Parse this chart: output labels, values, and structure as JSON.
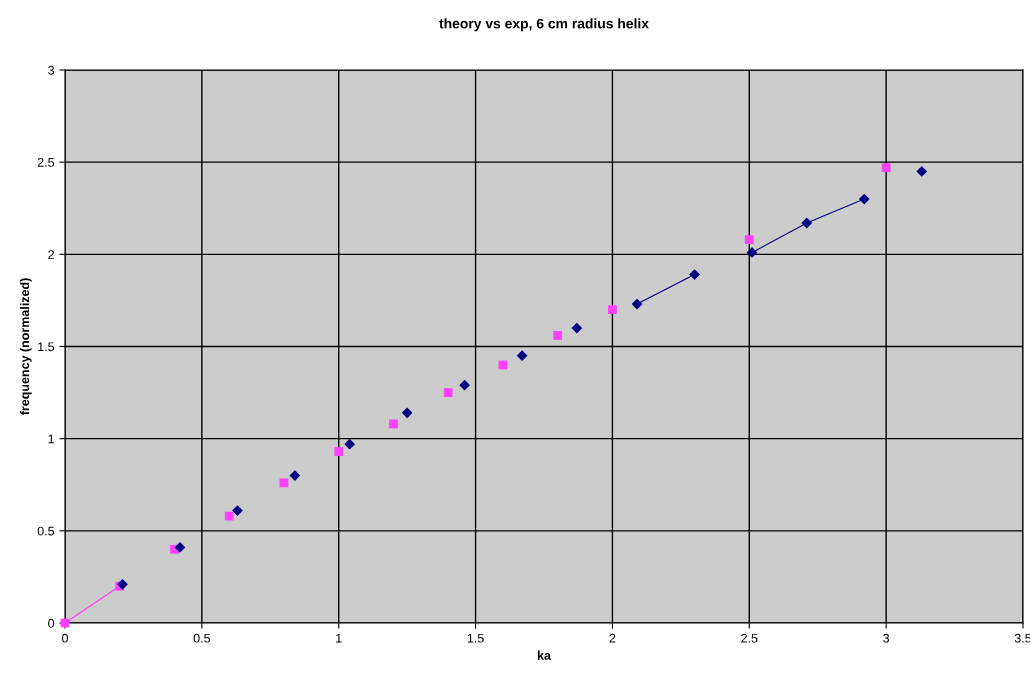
{
  "chart_data": {
    "type": "scatter",
    "title": "theory vs exp, 6 cm radius helix",
    "xlabel": "ka",
    "ylabel": "frequency (normalized)",
    "xlim": [
      0,
      3.5
    ],
    "xticks": [
      0,
      0.5,
      1,
      1.5,
      2,
      2.5,
      3,
      3.5
    ],
    "ylim": [
      0,
      3
    ],
    "yticks": [
      0,
      0.5,
      1,
      1.5,
      2,
      2.5,
      3
    ],
    "grid": true,
    "series": [
      {
        "marker": "diamond",
        "color": "#000080",
        "x": [
          0.21,
          0.42,
          0.63,
          0.84,
          1.04,
          1.25,
          1.46,
          1.67,
          1.87,
          2.09,
          2.3,
          2.51,
          2.71,
          2.92,
          3.13
        ],
        "values": [
          0.21,
          0.41,
          0.61,
          0.8,
          0.97,
          1.14,
          1.29,
          1.45,
          1.6,
          1.73,
          1.89,
          2.01,
          2.17,
          2.3,
          2.45
        ]
      },
      {
        "marker": "square",
        "color": "#ff40ff",
        "x": [
          0,
          0.2,
          0.4,
          0.6,
          0.8,
          1.0,
          1.2,
          1.4,
          1.6,
          1.8,
          2.0,
          2.5,
          3.0
        ],
        "values": [
          0,
          0.2,
          0.4,
          0.58,
          0.76,
          0.93,
          1.08,
          1.25,
          1.4,
          1.56,
          1.7,
          2.08,
          2.47
        ]
      },
      {
        "type": "line",
        "marker": "none",
        "color": "#000080",
        "x": [
          2.09,
          2.3,
          2.35,
          2.51,
          2.71,
          2.92
        ],
        "values": [
          1.73,
          1.89,
          null,
          2.01,
          2.17,
          2.3
        ]
      },
      {
        "type": "line",
        "marker": "none",
        "color": "#ff40ff",
        "x": [
          0,
          0.2
        ],
        "values": [
          0,
          0.2
        ]
      }
    ]
  }
}
